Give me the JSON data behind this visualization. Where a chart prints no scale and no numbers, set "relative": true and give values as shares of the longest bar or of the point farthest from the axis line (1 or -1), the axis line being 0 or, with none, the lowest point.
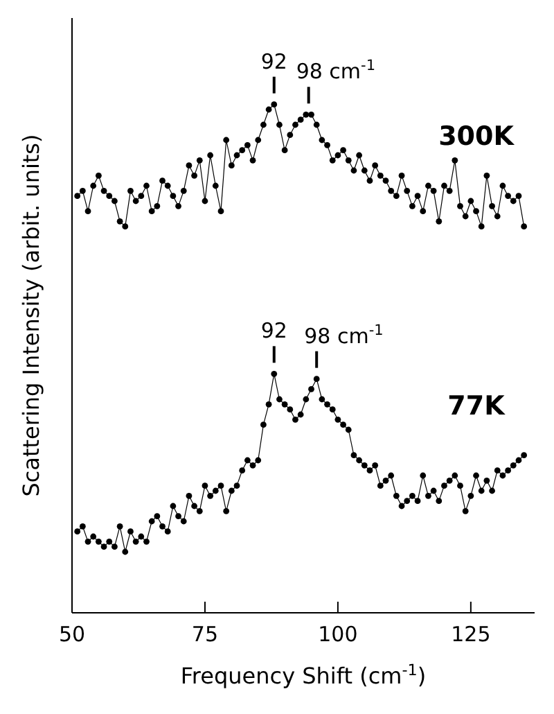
{
  "chart_data": {
    "type": "line",
    "relative": true,
    "xlabel": "Frequency Shift (cm$^{-1}$)",
    "ylabel": "Scattering Intensity (arbit. units)",
    "xlim": [
      50,
      137
    ],
    "xticks": [
      50,
      75,
      100,
      125
    ],
    "marker": "circle",
    "grid": false,
    "legend": false,
    "series": [
      {
        "name": "300K",
        "color": "#000000",
        "x": [
          51,
          52,
          53,
          54,
          55,
          56,
          57,
          58,
          59,
          60,
          61,
          62,
          63,
          64,
          65,
          66,
          67,
          68,
          69,
          70,
          71,
          72,
          73,
          74,
          75,
          76,
          77,
          78,
          79,
          80,
          81,
          82,
          83,
          84,
          85,
          86,
          87,
          88,
          89,
          90,
          91,
          92,
          93,
          94,
          95,
          96,
          97,
          98,
          99,
          100,
          101,
          102,
          103,
          104,
          105,
          106,
          107,
          108,
          109,
          110,
          111,
          112,
          113,
          114,
          115,
          116,
          117,
          118,
          119,
          120,
          121,
          122,
          123,
          124,
          125,
          126,
          127,
          128,
          129,
          130,
          131,
          132,
          133,
          134,
          135
        ],
        "values": [
          0.82,
          0.83,
          0.79,
          0.84,
          0.86,
          0.83,
          0.82,
          0.81,
          0.77,
          0.76,
          0.83,
          0.81,
          0.82,
          0.84,
          0.79,
          0.8,
          0.85,
          0.84,
          0.82,
          0.8,
          0.83,
          0.88,
          0.86,
          0.89,
          0.81,
          0.9,
          0.84,
          0.79,
          0.93,
          0.88,
          0.9,
          0.91,
          0.92,
          0.89,
          0.93,
          0.96,
          0.99,
          1,
          0.96,
          0.91,
          0.94,
          0.96,
          0.97,
          0.98,
          0.98,
          0.96,
          0.93,
          0.92,
          0.89,
          0.9,
          0.91,
          0.89,
          0.87,
          0.9,
          0.87,
          0.85,
          0.88,
          0.86,
          0.85,
          0.83,
          0.82,
          0.86,
          0.83,
          0.8,
          0.82,
          0.79,
          0.84,
          0.83,
          0.77,
          0.84,
          0.83,
          0.89,
          0.8,
          0.78,
          0.81,
          0.79,
          0.76,
          0.86,
          0.8,
          0.78,
          0.84,
          0.82,
          0.81,
          0.82,
          0.76
        ]
      },
      {
        "name": "77K",
        "color": "#000000",
        "x": [
          51,
          52,
          53,
          54,
          55,
          56,
          57,
          58,
          59,
          60,
          61,
          62,
          63,
          64,
          65,
          66,
          67,
          68,
          69,
          70,
          71,
          72,
          73,
          74,
          75,
          76,
          77,
          78,
          79,
          80,
          81,
          82,
          83,
          84,
          85,
          86,
          87,
          88,
          89,
          90,
          91,
          92,
          93,
          94,
          95,
          96,
          97,
          98,
          99,
          100,
          101,
          102,
          103,
          104,
          105,
          106,
          107,
          108,
          109,
          110,
          111,
          112,
          113,
          114,
          115,
          116,
          117,
          118,
          119,
          120,
          121,
          122,
          123,
          124,
          125,
          126,
          127,
          128,
          129,
          130,
          131,
          132,
          133,
          134,
          135
        ],
        "values": [
          0.16,
          0.17,
          0.14,
          0.15,
          0.14,
          0.13,
          0.14,
          0.13,
          0.17,
          0.12,
          0.16,
          0.14,
          0.15,
          0.14,
          0.18,
          0.19,
          0.17,
          0.16,
          0.21,
          0.19,
          0.18,
          0.23,
          0.21,
          0.2,
          0.25,
          0.23,
          0.24,
          0.25,
          0.2,
          0.24,
          0.25,
          0.28,
          0.3,
          0.29,
          0.3,
          0.37,
          0.41,
          0.47,
          0.42,
          0.41,
          0.4,
          0.38,
          0.39,
          0.42,
          0.44,
          0.46,
          0.42,
          0.41,
          0.4,
          0.38,
          0.37,
          0.36,
          0.31,
          0.3,
          0.29,
          0.28,
          0.29,
          0.25,
          0.26,
          0.27,
          0.23,
          0.21,
          0.22,
          0.23,
          0.22,
          0.27,
          0.23,
          0.24,
          0.22,
          0.25,
          0.26,
          0.27,
          0.25,
          0.2,
          0.23,
          0.27,
          0.24,
          0.26,
          0.24,
          0.28,
          0.27,
          0.28,
          0.29,
          0.3,
          0.31
        ]
      }
    ],
    "annotations": [
      {
        "text": "92",
        "x": 88,
        "y": 1
      },
      {
        "text": "98 cm$^{-1}$",
        "x": 94.5,
        "y": 0.98
      },
      {
        "text": "92",
        "x": 88,
        "y": 0.47
      },
      {
        "text": "98 cm$^{-1}$",
        "x": 96,
        "y": 0.46
      }
    ]
  }
}
